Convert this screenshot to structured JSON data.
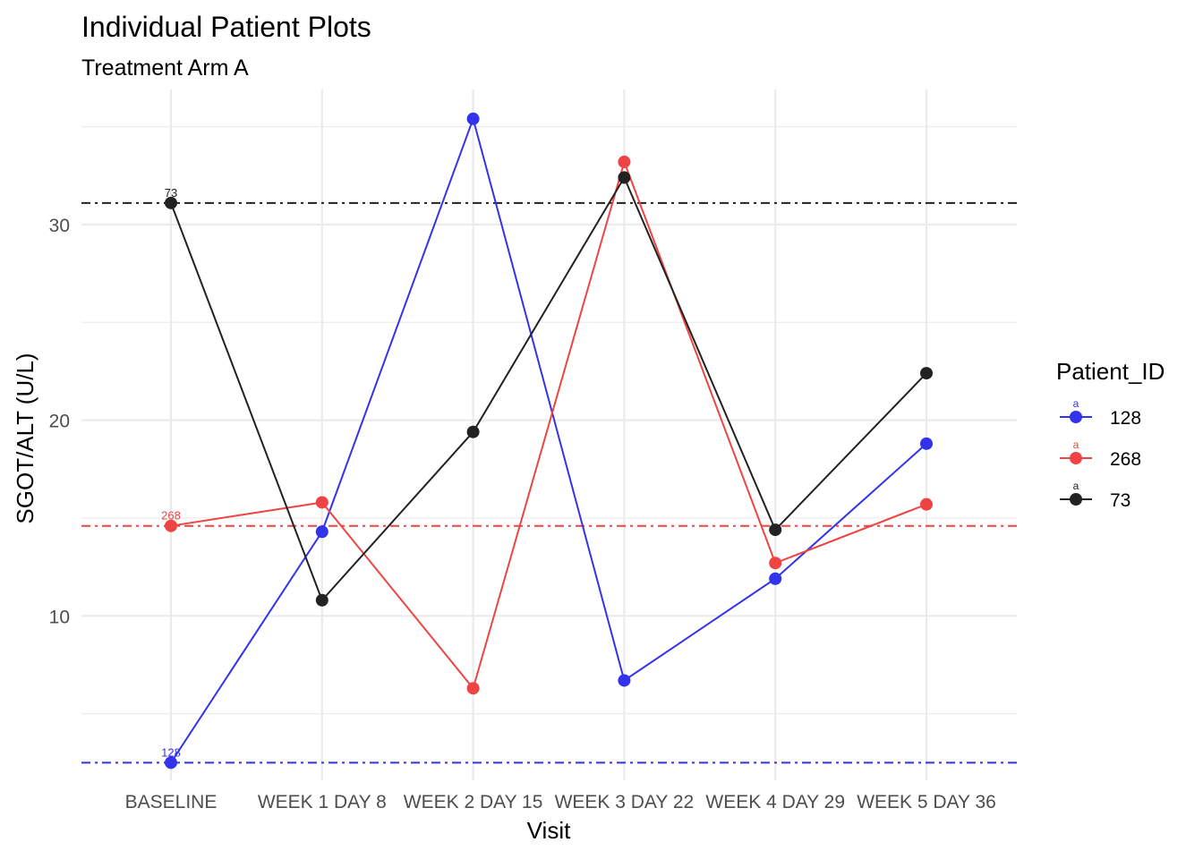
{
  "chart_data": {
    "type": "line",
    "title": "Individual Patient Plots",
    "subtitle": "Treatment Arm A",
    "xlabel": "Visit",
    "ylabel": "SGOT/ALT (U/L)",
    "categories": [
      "BASELINE",
      "WEEK 1 DAY 8",
      "WEEK 2 DAY 15",
      "WEEK 3 DAY 22",
      "WEEK 4 DAY 29",
      "WEEK 5 DAY 36"
    ],
    "y_ticks": [
      10,
      20,
      30
    ],
    "ylim": [
      1.6,
      36.9
    ],
    "grid": true,
    "legend": {
      "title": "Patient_ID",
      "position": "right",
      "key_glyph": "a"
    },
    "series": [
      {
        "name": "128",
        "color": "#3333EE",
        "values": [
          2.5,
          14.3,
          35.4,
          6.7,
          11.9,
          18.8
        ],
        "baseline_label": "128"
      },
      {
        "name": "268",
        "color": "#EE4444",
        "values": [
          14.6,
          15.8,
          6.3,
          33.2,
          12.7,
          15.7
        ],
        "baseline_label": "268"
      },
      {
        "name": "73",
        "color": "#222222",
        "values": [
          31.1,
          10.8,
          19.4,
          32.4,
          14.4,
          22.4
        ],
        "baseline_label": "73"
      }
    ]
  }
}
